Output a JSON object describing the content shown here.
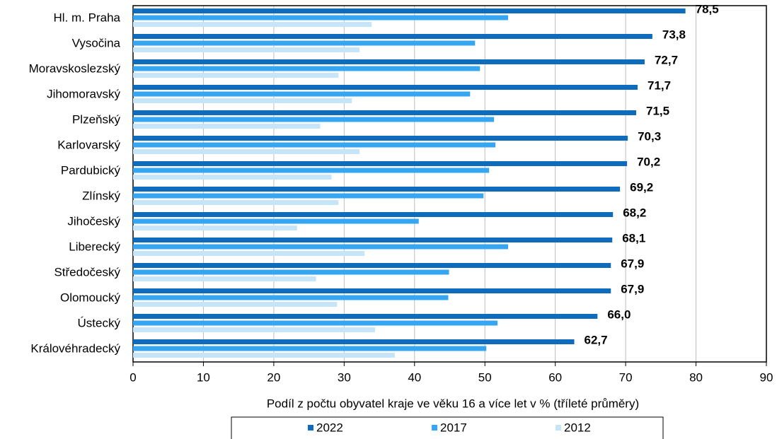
{
  "chart_data": {
    "type": "hbar",
    "categories": [
      "Hl. m. Praha",
      "Vysočina",
      "Moravskoslezský",
      "Jihomoravský",
      "Plzeňský",
      "Karlovarský",
      "Pardubický",
      "Zlínský",
      "Jihočeský",
      "Liberecký",
      "Středočeský",
      "Olomoucký",
      "Ústecký",
      "Královéhradecký"
    ],
    "series": [
      {
        "name": "2022",
        "color": "#0f6cbd",
        "values": [
          78.5,
          73.8,
          72.7,
          71.7,
          71.5,
          70.3,
          70.2,
          69.2,
          68.2,
          68.1,
          67.9,
          67.9,
          66.0,
          62.7
        ],
        "value_labels": [
          "78,5",
          "73,8",
          "72,7",
          "71,7",
          "71,5",
          "70,3",
          "70,2",
          "69,2",
          "68,2",
          "68,1",
          "67,9",
          "67,9",
          "66,0",
          "62,7"
        ]
      },
      {
        "name": "2017",
        "color": "#36a6f2",
        "values": [
          53.3,
          48.6,
          49.3,
          47.9,
          51.3,
          51.5,
          50.6,
          49.8,
          40.6,
          53.3,
          44.9,
          44.8,
          51.8,
          50.2
        ]
      },
      {
        "name": "2012",
        "color": "#c6e5f8",
        "values": [
          33.9,
          32.2,
          29.2,
          31.1,
          26.6,
          32.2,
          28.2,
          29.2,
          23.3,
          32.9,
          26.0,
          29.0,
          34.4,
          37.2
        ]
      }
    ],
    "xlabel": "Podíl z počtu obyvatel kraje ve věku 16 a více let v % (tříleté průměry)",
    "xlim": [
      0,
      90
    ],
    "xticks": [
      0,
      10,
      20,
      30,
      40,
      50,
      60,
      70,
      80,
      90
    ],
    "grid": true
  }
}
